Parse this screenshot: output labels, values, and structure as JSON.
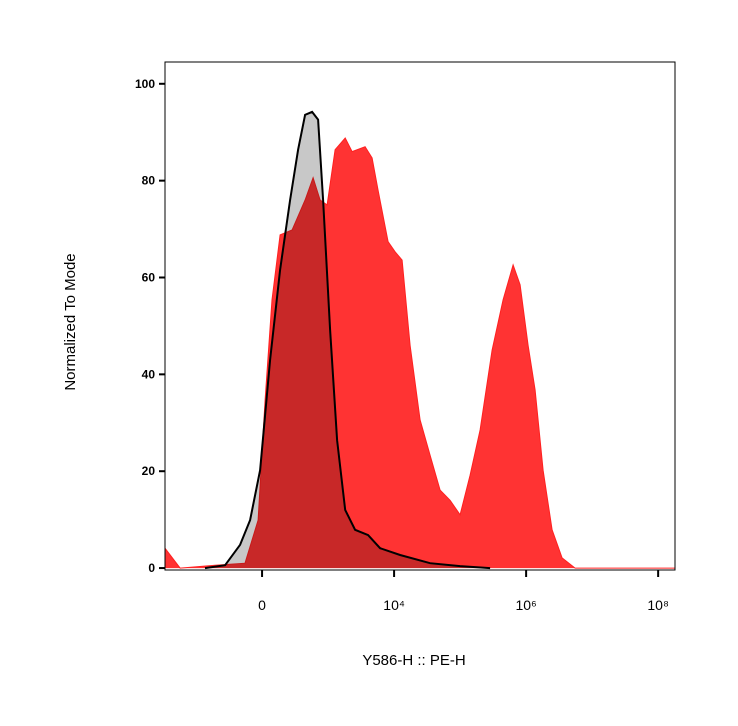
{
  "chart_data": {
    "type": "area",
    "xlabel": "Y586-H :: PE-H",
    "ylabel": "Normalized To Mode",
    "xscale": "biexponential",
    "xlim": [
      -2950,
      180000000
    ],
    "xticks": [
      0,
      {
        "value": 10000,
        "label": "10⁴"
      },
      {
        "value": 1000000,
        "label": "10⁶"
      },
      {
        "value": 100000000,
        "label": "10⁸"
      }
    ],
    "ylim": [
      -0.4,
      104.5
    ],
    "yticks": [
      0,
      20,
      40,
      60,
      80,
      100
    ],
    "series": [
      {
        "color": "#ff3333",
        "outline": "#ff2020",
        "x": [
          -2950,
          -1740,
          -496,
          -126,
          -28,
          21,
          71,
          134,
          250,
          426,
          576,
          743,
          955,
          1268,
          1810,
          2310,
          3640,
          4640,
          5730,
          8110,
          10350,
          13210,
          17460,
          24770,
          35080,
          49770,
          70470,
          100000,
          141900,
          200900,
          305500,
          448700,
          635300,
          811000,
          1071600,
          1368000,
          1811000,
          2477000,
          3508000,
          5521000,
          180000000
        ],
        "values": [
          4.1,
          0,
          0.6,
          1,
          9.9,
          34.7,
          55.4,
          68.8,
          69.8,
          76,
          80.6,
          76,
          75,
          86.4,
          88.8,
          86,
          87,
          84.7,
          78,
          67.4,
          65.3,
          63.6,
          46,
          30.6,
          23.3,
          16.1,
          14,
          11,
          19.2,
          28.5,
          45,
          55.4,
          62.6,
          58.5,
          46,
          36.8,
          20.2,
          7.9,
          2.1,
          0,
          0
        ]
      },
      {
        "color": "#c8c8c8",
        "outline": "#000000",
        "x": [
          -717,
          -336,
          -169,
          -86,
          -14,
          57,
          134,
          228,
          323,
          426,
          555,
          691,
          828,
          1063,
          1361,
          1810,
          2564,
          4036,
          6140,
          12330,
          35080,
          100000,
          285100
        ],
        "values": [
          0,
          0.6,
          4.8,
          9.9,
          20.2,
          43,
          61.6,
          76,
          86.4,
          93.6,
          94.2,
          92.6,
          76,
          49.2,
          26.4,
          12,
          7.9,
          6.8,
          4.1,
          2.7,
          1,
          0.4,
          0
        ]
      }
    ]
  }
}
